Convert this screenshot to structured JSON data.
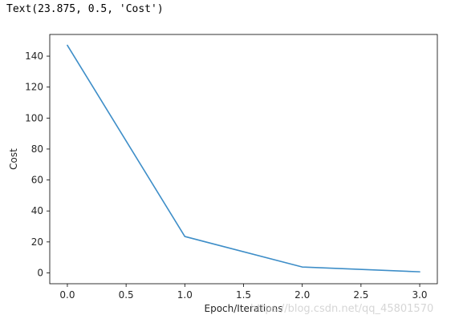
{
  "cell_output": {
    "text": "Text(23.875, 0.5, 'Cost')"
  },
  "watermark": {
    "text": "https://blog.csdn.net/qq_45801570"
  },
  "chart_data": {
    "type": "line",
    "title": "",
    "xlabel": "Epoch/Iterations",
    "ylabel": "Cost",
    "xlim": [
      -0.15,
      3.15
    ],
    "ylim": [
      -7,
      154
    ],
    "xticks": [
      0.0,
      0.5,
      1.0,
      1.5,
      2.0,
      2.5,
      3.0
    ],
    "xtick_labels": [
      "0.0",
      "0.5",
      "1.0",
      "1.5",
      "2.0",
      "2.5",
      "3.0"
    ],
    "yticks": [
      0,
      20,
      40,
      60,
      80,
      100,
      120,
      140
    ],
    "ytick_labels": [
      "0",
      "20",
      "40",
      "60",
      "80",
      "100",
      "120",
      "140"
    ],
    "grid": false,
    "legend": "none",
    "series": [
      {
        "x": [
          0,
          1,
          2,
          3
        ],
        "y": [
          147,
          23.5,
          3.8,
          0.7
        ],
        "color": "#3e8ec8"
      }
    ]
  }
}
